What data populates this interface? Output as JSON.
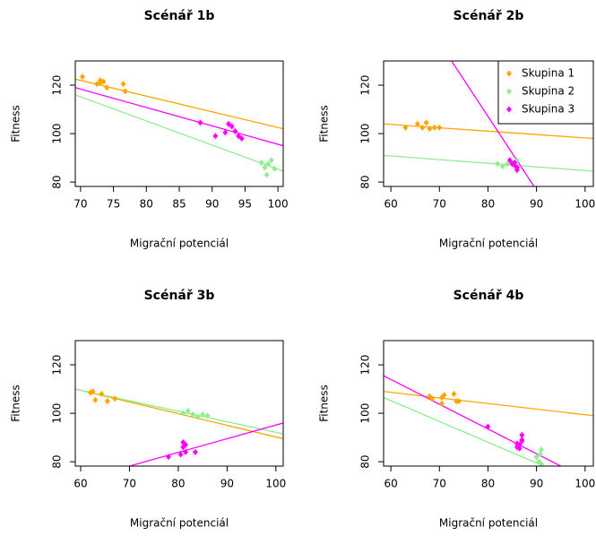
{
  "chart_data": [
    {
      "type": "scatter",
      "title": "Scénář 1b",
      "xlabel": "Migrační potenciál",
      "ylabel": "Fitness",
      "xlim": [
        69.2,
        100.8
      ],
      "ylim": [
        78.2,
        130
      ],
      "xticks": [
        70,
        75,
        80,
        85,
        90,
        95,
        100
      ],
      "yticks": [
        80,
        100,
        120
      ],
      "series": [
        {
          "name": "Skupina 1",
          "color": "#FFA500",
          "x": [
            70.3,
            72.5,
            73,
            73.5,
            74,
            76.5,
            76.8,
            73
          ],
          "y": [
            123.5,
            120.5,
            122,
            121.5,
            119,
            120.5,
            117.5,
            121
          ],
          "fit": {
            "x": [
              69.2,
              100.8
            ],
            "y": [
              122.5,
              102
            ]
          }
        },
        {
          "name": "Skupina 2",
          "color": "#90EE90",
          "x": [
            97.5,
            98,
            98.3,
            98.5,
            99,
            99.5
          ],
          "y": [
            88,
            86,
            83,
            87.5,
            89,
            85.5
          ],
          "fit": {
            "x": [
              69.2,
              100.8
            ],
            "y": [
              116,
              84.5
            ]
          }
        },
        {
          "name": "Skupina 3",
          "color": "#FF00FF",
          "x": [
            88.2,
            90.5,
            92,
            92.5,
            93,
            93.5,
            94,
            94.5
          ],
          "y": [
            104.5,
            99,
            100.5,
            104,
            103,
            101,
            99,
            98
          ],
          "fit": {
            "x": [
              69.2,
              100.8
            ],
            "y": [
              119,
              95
            ]
          }
        }
      ]
    },
    {
      "type": "scatter",
      "title": "Scénář 2b",
      "xlabel": "Migrační potenciál",
      "ylabel": "Fitness",
      "legend": "top-right",
      "xlim": [
        58.5,
        101.7
      ],
      "ylim": [
        78.2,
        130
      ],
      "xticks": [
        60,
        70,
        80,
        90,
        100
      ],
      "yticks": [
        80,
        100,
        120
      ],
      "series": [
        {
          "name": "Skupina 1",
          "color": "#FFA500",
          "x": [
            63,
            65.5,
            66.5,
            67.3,
            68,
            69,
            70
          ],
          "y": [
            102.5,
            104,
            102.5,
            104.5,
            102,
            102.5,
            102.5
          ],
          "fit": {
            "x": [
              58.5,
              101.7
            ],
            "y": [
              104,
              98
            ]
          }
        },
        {
          "name": "Skupina 2",
          "color": "#90EE90",
          "x": [
            82,
            83,
            84,
            85,
            86
          ],
          "y": [
            87.5,
            86.5,
            87.5,
            88,
            89
          ],
          "fit": {
            "x": [
              58.5,
              101.7
            ],
            "y": [
              91,
              84.5
            ]
          }
        },
        {
          "name": "Skupina 3",
          "color": "#FF00FF",
          "x": [
            84.5,
            85,
            85.5,
            86,
            86,
            85.5
          ],
          "y": [
            89,
            87.5,
            88,
            86,
            85,
            87
          ],
          "fit": {
            "x": [
              72.5,
              89.5
            ],
            "y": [
              130,
              78.2
            ]
          }
        }
      ]
    },
    {
      "type": "scatter",
      "title": "Scénář 3b",
      "xlabel": "Migrační potenciál",
      "ylabel": "Fitness",
      "xlim": [
        58.9,
        101.5
      ],
      "ylim": [
        78.2,
        130
      ],
      "xticks": [
        60,
        70,
        80,
        90,
        100
      ],
      "yticks": [
        80,
        100,
        120
      ],
      "series": [
        {
          "name": "Skupina 1",
          "color": "#FFA500",
          "x": [
            62,
            62.5,
            63,
            64.3,
            65.5,
            67
          ],
          "y": [
            108.5,
            109,
            105.5,
            108,
            105,
            106
          ],
          "fit": {
            "x": [
              58.9,
              101.5
            ],
            "y": [
              110,
              89.5
            ]
          }
        },
        {
          "name": "Skupina 2",
          "color": "#90EE90",
          "x": [
            81,
            82,
            83,
            84,
            85,
            86
          ],
          "y": [
            100,
            101,
            99.5,
            98.5,
            99.5,
            99
          ],
          "fit": {
            "x": [
              58.9,
              101.5
            ],
            "y": [
              110,
              91.5
            ]
          }
        },
        {
          "name": "Skupina 3",
          "color": "#FF00FF",
          "x": [
            78,
            80.5,
            81,
            81,
            81.5,
            81.5,
            83.5
          ],
          "y": [
            82,
            83,
            86,
            88,
            84,
            87,
            84
          ],
          "fit": {
            "x": [
              70,
              101.5
            ],
            "y": [
              78.2,
              96
            ]
          }
        }
      ]
    },
    {
      "type": "scatter",
      "title": "Scénář 4b",
      "xlabel": "Migrační potenciál",
      "ylabel": "Fitness",
      "xlim": [
        58.5,
        101.7
      ],
      "ylim": [
        78.2,
        130
      ],
      "xticks": [
        60,
        70,
        80,
        90,
        100
      ],
      "yticks": [
        80,
        100,
        120
      ],
      "series": [
        {
          "name": "Skupina 1",
          "color": "#FFA500",
          "x": [
            68,
            68.5,
            70.5,
            70.5,
            71,
            73,
            73.5,
            74
          ],
          "y": [
            107,
            106,
            104,
            106.5,
            107.5,
            108,
            105,
            105
          ],
          "fit": {
            "x": [
              58.5,
              101.7
            ],
            "y": [
              109,
              99
            ]
          }
        },
        {
          "name": "Skupina 2",
          "color": "#90EE90",
          "x": [
            90,
            90.5,
            91,
            91,
            90.8
          ],
          "y": [
            82,
            80,
            85,
            79,
            83
          ],
          "fit": {
            "x": [
              58.5,
              91.5
            ],
            "y": [
              106.5,
              78.2
            ]
          }
        },
        {
          "name": "Skupina 3",
          "color": "#FF00FF",
          "x": [
            80,
            86,
            86.5,
            86.5,
            87,
            87,
            87,
            86
          ],
          "y": [
            94.5,
            86,
            85.5,
            87,
            88.5,
            91,
            89,
            87.5
          ],
          "fit": {
            "x": [
              58.5,
              95
            ],
            "y": [
              115.5,
              78.2
            ]
          }
        }
      ]
    }
  ]
}
